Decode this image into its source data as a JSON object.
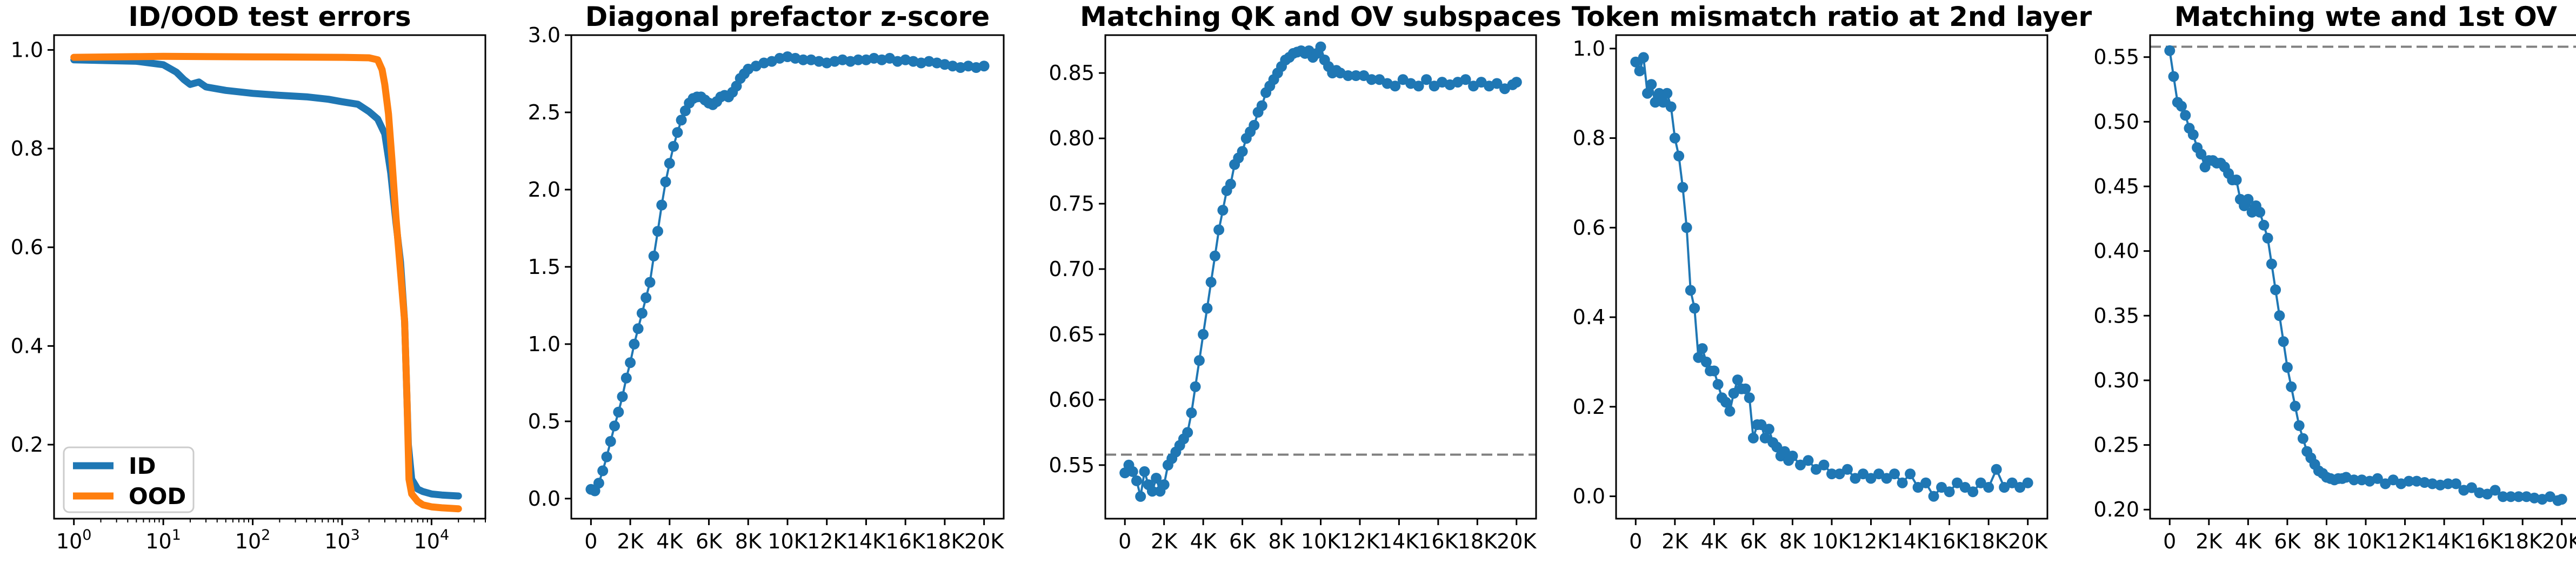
{
  "colors": {
    "blue": "#1f77b4",
    "orange": "#ff7f0e",
    "reference_line": "#808080"
  },
  "chart_data": [
    {
      "type": "line",
      "title": "ID/OOD test errors",
      "xscale": "log",
      "xlim": [
        0.6,
        40000
      ],
      "ylim": [
        0.05,
        1.03
      ],
      "x_tick_labels": [
        "10^0",
        "10^1",
        "10^2",
        "10^3",
        "10^4"
      ],
      "y_ticks": [
        0.2,
        0.4,
        0.6,
        0.8,
        1.0
      ],
      "y_tick_labels": [
        "0.2",
        "0.4",
        "0.6",
        "0.8",
        "1.0"
      ],
      "legend": "lower-left",
      "series": [
        {
          "name": "ID",
          "color": "#1f77b4",
          "x": [
            1,
            5,
            10,
            14,
            17,
            20,
            25,
            30,
            50,
            100,
            200,
            400,
            700,
            1000,
            1500,
            2000,
            2500,
            3000,
            3500,
            4000,
            4500,
            5000,
            5500,
            6000,
            7000,
            8000,
            10000,
            13000,
            16000,
            20000
          ],
          "y": [
            0.98,
            0.977,
            0.97,
            0.955,
            0.94,
            0.93,
            0.935,
            0.925,
            0.918,
            0.912,
            0.908,
            0.905,
            0.9,
            0.895,
            0.89,
            0.875,
            0.86,
            0.83,
            0.75,
            0.65,
            0.57,
            0.45,
            0.2,
            0.13,
            0.11,
            0.105,
            0.1,
            0.098,
            0.097,
            0.096
          ]
        },
        {
          "name": "OOD",
          "color": "#ff7f0e",
          "x": [
            1,
            10,
            100,
            1000,
            2000,
            2500,
            2800,
            3000,
            3300,
            3600,
            4000,
            4500,
            5000,
            5300,
            5600,
            6000,
            7000,
            8000,
            10000,
            13000,
            16000,
            20000
          ],
          "y": [
            0.985,
            0.987,
            0.986,
            0.985,
            0.984,
            0.98,
            0.96,
            0.93,
            0.87,
            0.78,
            0.66,
            0.55,
            0.45,
            0.3,
            0.13,
            0.1,
            0.085,
            0.078,
            0.074,
            0.072,
            0.071,
            0.07
          ]
        }
      ]
    },
    {
      "type": "line",
      "title": "Diagonal prefactor z-score",
      "xlim": [
        -1000,
        21000
      ],
      "ylim": [
        -0.13,
        3.0
      ],
      "x_ticks": [
        0,
        2000,
        4000,
        6000,
        8000,
        10000,
        12000,
        14000,
        16000,
        18000,
        20000
      ],
      "x_tick_labels": [
        "0",
        "2K",
        "4K",
        "6K",
        "8K",
        "10K",
        "12K",
        "14K",
        "16K",
        "18K",
        "20K"
      ],
      "y_ticks": [
        0.0,
        0.5,
        1.0,
        1.5,
        2.0,
        2.5,
        3.0
      ],
      "y_tick_labels": [
        "0.0",
        "0.5",
        "1.0",
        "1.5",
        "2.0",
        "2.5",
        "3.0"
      ],
      "series": [
        {
          "color": "#1f77b4",
          "marker": "circle",
          "x": [
            0,
            200,
            400,
            600,
            800,
            1000,
            1200,
            1400,
            1600,
            1800,
            2000,
            2200,
            2400,
            2600,
            2800,
            3000,
            3200,
            3400,
            3600,
            3800,
            4000,
            4200,
            4400,
            4600,
            4800,
            5000,
            5200,
            5400,
            5600,
            5800,
            6000,
            6200,
            6400,
            6600,
            6800,
            7000,
            7200,
            7400,
            7600,
            7800,
            8000,
            8400,
            8800,
            9200,
            9600,
            10000,
            10400,
            10800,
            11200,
            11600,
            12000,
            12400,
            12800,
            13200,
            13600,
            14000,
            14400,
            14800,
            15200,
            15600,
            16000,
            16400,
            16800,
            17200,
            17600,
            18000,
            18400,
            18800,
            19200,
            19600,
            20000
          ],
          "y": [
            0.06,
            0.05,
            0.1,
            0.18,
            0.27,
            0.37,
            0.47,
            0.56,
            0.66,
            0.78,
            0.88,
            1.0,
            1.1,
            1.2,
            1.3,
            1.4,
            1.57,
            1.73,
            1.9,
            2.05,
            2.17,
            2.28,
            2.37,
            2.45,
            2.51,
            2.56,
            2.59,
            2.6,
            2.6,
            2.58,
            2.56,
            2.55,
            2.57,
            2.6,
            2.61,
            2.6,
            2.63,
            2.67,
            2.72,
            2.75,
            2.78,
            2.8,
            2.82,
            2.83,
            2.85,
            2.86,
            2.85,
            2.84,
            2.84,
            2.83,
            2.82,
            2.83,
            2.84,
            2.83,
            2.84,
            2.84,
            2.85,
            2.84,
            2.85,
            2.83,
            2.84,
            2.83,
            2.82,
            2.83,
            2.82,
            2.81,
            2.8,
            2.79,
            2.8,
            2.79,
            2.8
          ]
        }
      ]
    },
    {
      "type": "line",
      "title": "Matching QK and OV subspaces",
      "xlim": [
        -1000,
        21000
      ],
      "ylim": [
        0.509,
        0.879
      ],
      "x_ticks": [
        0,
        2000,
        4000,
        6000,
        8000,
        10000,
        12000,
        14000,
        16000,
        18000,
        20000
      ],
      "x_tick_labels": [
        "0",
        "2K",
        "4K",
        "6K",
        "8K",
        "10K",
        "12K",
        "14K",
        "16K",
        "18K",
        "20K"
      ],
      "y_ticks": [
        0.55,
        0.6,
        0.65,
        0.7,
        0.75,
        0.8,
        0.85
      ],
      "y_tick_labels": [
        "0.55",
        "0.60",
        "0.65",
        "0.70",
        "0.75",
        "0.80",
        "0.85"
      ],
      "reference_line": 0.558,
      "series": [
        {
          "color": "#1f77b4",
          "marker": "circle",
          "x": [
            0,
            200,
            400,
            600,
            800,
            1000,
            1200,
            1400,
            1600,
            1800,
            2000,
            2200,
            2400,
            2600,
            2800,
            3000,
            3200,
            3400,
            3600,
            3800,
            4000,
            4200,
            4400,
            4600,
            4800,
            5000,
            5200,
            5400,
            5600,
            5800,
            6000,
            6200,
            6400,
            6600,
            6800,
            7000,
            7200,
            7400,
            7600,
            7800,
            8000,
            8200,
            8400,
            8600,
            8800,
            9000,
            9200,
            9400,
            9600,
            9800,
            10000,
            10200,
            10400,
            10600,
            10800,
            11000,
            11400,
            11800,
            12200,
            12600,
            13000,
            13400,
            13800,
            14200,
            14600,
            15000,
            15400,
            15800,
            16200,
            16600,
            17000,
            17400,
            17800,
            18200,
            18600,
            19000,
            19400,
            19800,
            20000
          ],
          "y": [
            0.544,
            0.55,
            0.545,
            0.538,
            0.526,
            0.545,
            0.535,
            0.53,
            0.54,
            0.53,
            0.535,
            0.55,
            0.555,
            0.56,
            0.565,
            0.57,
            0.575,
            0.59,
            0.61,
            0.63,
            0.65,
            0.67,
            0.69,
            0.71,
            0.73,
            0.745,
            0.76,
            0.765,
            0.78,
            0.785,
            0.79,
            0.8,
            0.805,
            0.81,
            0.82,
            0.825,
            0.835,
            0.84,
            0.845,
            0.85,
            0.855,
            0.86,
            0.862,
            0.865,
            0.866,
            0.867,
            0.865,
            0.867,
            0.862,
            0.865,
            0.87,
            0.86,
            0.855,
            0.85,
            0.852,
            0.85,
            0.848,
            0.848,
            0.848,
            0.845,
            0.845,
            0.842,
            0.84,
            0.845,
            0.842,
            0.84,
            0.845,
            0.84,
            0.843,
            0.841,
            0.843,
            0.845,
            0.84,
            0.843,
            0.84,
            0.842,
            0.838,
            0.841,
            0.843
          ]
        }
      ]
    },
    {
      "type": "line",
      "title": "Token mismatch ratio at 2nd layer",
      "xlim": [
        -1000,
        21000
      ],
      "ylim": [
        -0.05,
        1.03
      ],
      "x_ticks": [
        0,
        2000,
        4000,
        6000,
        8000,
        10000,
        12000,
        14000,
        16000,
        18000,
        20000
      ],
      "x_tick_labels": [
        "0",
        "2K",
        "4K",
        "6K",
        "8K",
        "10K",
        "12K",
        "14K",
        "16K",
        "18K",
        "20K"
      ],
      "y_ticks": [
        0.0,
        0.2,
        0.4,
        0.6,
        0.8,
        1.0
      ],
      "y_tick_labels": [
        "0.0",
        "0.2",
        "0.4",
        "0.6",
        "0.8",
        "1.0"
      ],
      "series": [
        {
          "color": "#1f77b4",
          "marker": "circle",
          "x": [
            0,
            200,
            400,
            600,
            800,
            1000,
            1200,
            1400,
            1600,
            1800,
            2000,
            2200,
            2400,
            2600,
            2800,
            3000,
            3200,
            3400,
            3600,
            3800,
            4000,
            4200,
            4400,
            4600,
            4800,
            5000,
            5200,
            5400,
            5600,
            5800,
            6000,
            6200,
            6400,
            6600,
            6800,
            7000,
            7200,
            7400,
            7600,
            7800,
            8000,
            8400,
            8800,
            9200,
            9600,
            10000,
            10400,
            10800,
            11200,
            11600,
            12000,
            12400,
            12800,
            13200,
            13600,
            14000,
            14400,
            14800,
            15200,
            15600,
            16000,
            16400,
            16800,
            17200,
            17600,
            18000,
            18400,
            18800,
            19200,
            19600,
            20000
          ],
          "y": [
            0.97,
            0.95,
            0.98,
            0.9,
            0.92,
            0.88,
            0.9,
            0.88,
            0.9,
            0.87,
            0.8,
            0.76,
            0.69,
            0.6,
            0.46,
            0.42,
            0.31,
            0.33,
            0.3,
            0.28,
            0.28,
            0.25,
            0.22,
            0.21,
            0.19,
            0.23,
            0.26,
            0.24,
            0.24,
            0.22,
            0.13,
            0.16,
            0.16,
            0.13,
            0.15,
            0.12,
            0.11,
            0.09,
            0.1,
            0.08,
            0.09,
            0.07,
            0.08,
            0.06,
            0.07,
            0.05,
            0.05,
            0.06,
            0.04,
            0.05,
            0.04,
            0.05,
            0.04,
            0.05,
            0.03,
            0.05,
            0.02,
            0.03,
            0.0,
            0.02,
            0.01,
            0.03,
            0.02,
            0.01,
            0.03,
            0.02,
            0.06,
            0.02,
            0.03,
            0.02,
            0.03
          ]
        }
      ]
    },
    {
      "type": "line",
      "title": "Matching wte and 1st OV",
      "xlim": [
        -1000,
        21000
      ],
      "ylim": [
        0.193,
        0.567
      ],
      "x_ticks": [
        0,
        2000,
        4000,
        6000,
        8000,
        10000,
        12000,
        14000,
        16000,
        18000,
        20000
      ],
      "x_tick_labels": [
        "0",
        "2K",
        "4K",
        "6K",
        "8K",
        "10K",
        "12K",
        "14K",
        "16K",
        "18K",
        "20K"
      ],
      "y_ticks": [
        0.2,
        0.25,
        0.3,
        0.35,
        0.4,
        0.45,
        0.5,
        0.55
      ],
      "y_tick_labels": [
        "0.20",
        "0.25",
        "0.30",
        "0.35",
        "0.40",
        "0.45",
        "0.50",
        "0.55"
      ],
      "reference_line": 0.558,
      "series": [
        {
          "color": "#1f77b4",
          "marker": "circle",
          "x": [
            0,
            200,
            400,
            600,
            800,
            1000,
            1200,
            1400,
            1600,
            1800,
            2000,
            2200,
            2400,
            2600,
            2800,
            3000,
            3200,
            3400,
            3600,
            3800,
            4000,
            4200,
            4400,
            4600,
            4800,
            5000,
            5200,
            5400,
            5600,
            5800,
            6000,
            6200,
            6400,
            6600,
            6800,
            7000,
            7200,
            7400,
            7600,
            7800,
            8000,
            8200,
            8400,
            8600,
            8800,
            9000,
            9400,
            9800,
            10200,
            10600,
            11000,
            11400,
            11800,
            12200,
            12600,
            13000,
            13400,
            13800,
            14200,
            14600,
            15000,
            15400,
            15800,
            16200,
            16600,
            17000,
            17400,
            17800,
            18200,
            18600,
            19000,
            19400,
            19800,
            20000
          ],
          "y": [
            0.555,
            0.535,
            0.515,
            0.512,
            0.505,
            0.495,
            0.49,
            0.48,
            0.475,
            0.465,
            0.47,
            0.47,
            0.468,
            0.468,
            0.465,
            0.46,
            0.455,
            0.455,
            0.44,
            0.435,
            0.44,
            0.43,
            0.435,
            0.43,
            0.42,
            0.41,
            0.39,
            0.37,
            0.35,
            0.33,
            0.31,
            0.295,
            0.28,
            0.265,
            0.255,
            0.245,
            0.24,
            0.235,
            0.23,
            0.228,
            0.225,
            0.224,
            0.223,
            0.224,
            0.224,
            0.225,
            0.223,
            0.223,
            0.222,
            0.224,
            0.22,
            0.223,
            0.22,
            0.222,
            0.222,
            0.221,
            0.22,
            0.219,
            0.22,
            0.22,
            0.215,
            0.217,
            0.213,
            0.212,
            0.215,
            0.21,
            0.21,
            0.21,
            0.21,
            0.209,
            0.208,
            0.21,
            0.207,
            0.208
          ]
        }
      ]
    }
  ]
}
